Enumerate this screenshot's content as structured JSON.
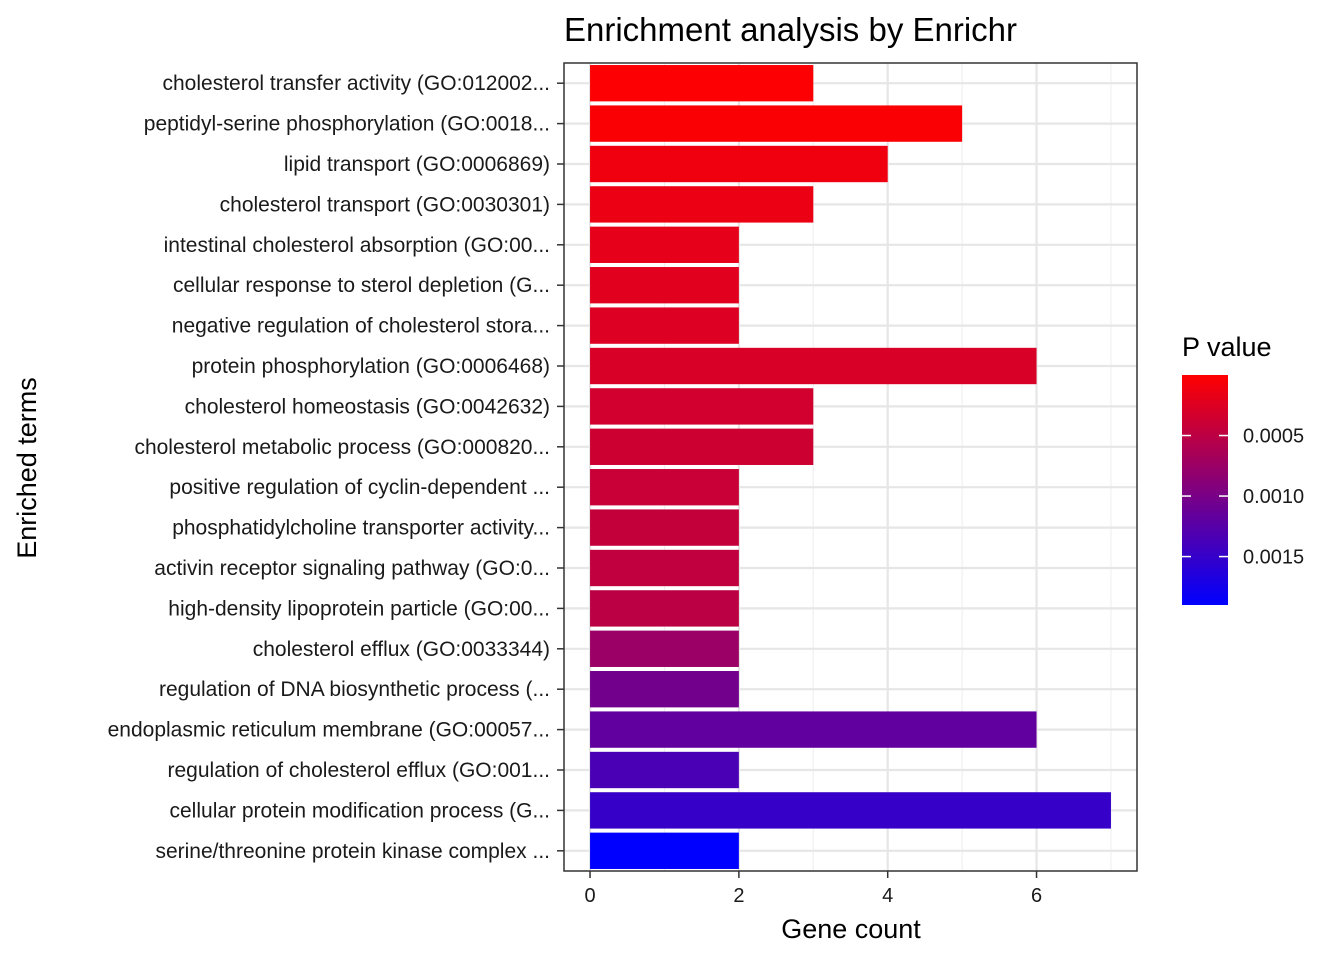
{
  "chart_data": {
    "type": "bar",
    "orientation": "horizontal",
    "title": "Enrichment analysis by Enrichr",
    "xlabel": "Gene count",
    "ylabel": "Enriched terms",
    "xlim": [
      -0.35,
      7.35
    ],
    "xticks": [
      0,
      2,
      4,
      6
    ],
    "grid": true,
    "legend": {
      "title": "P value",
      "placement": "right",
      "type": "colorbar",
      "range": [
        0.0,
        0.0019
      ],
      "ticks": [
        {
          "value": 0.0005,
          "label": "0.0005"
        },
        {
          "value": 0.001,
          "label": "0.0010"
        },
        {
          "value": 0.0015,
          "label": "0.0015"
        }
      ],
      "color_low": "#ff0000",
      "color_high": "#0000ff"
    },
    "categories": [
      "cholesterol transfer activity (GO:012002...",
      "peptidyl-serine phosphorylation (GO:0018...",
      "lipid transport (GO:0006869)",
      "cholesterol transport (GO:0030301)",
      "intestinal cholesterol absorption (GO:00...",
      "cellular response to sterol depletion (G...",
      "negative regulation of cholesterol stora...",
      "protein phosphorylation (GO:0006468)",
      "cholesterol homeostasis (GO:0042632)",
      "cholesterol metabolic process (GO:000820...",
      "positive regulation of cyclin-dependent ...",
      "phosphatidylcholine transporter activity...",
      "activin receptor signaling pathway (GO:0...",
      "high-density lipoprotein particle (GO:00...",
      "cholesterol efflux (GO:0033344)",
      "regulation of DNA biosynthetic process (...",
      "endoplasmic reticulum membrane (GO:00057...",
      "regulation of cholesterol efflux (GO:001...",
      "cellular protein modification process (G...",
      "serine/threonine protein kinase complex ..."
    ],
    "values": [
      3,
      5,
      4,
      3,
      2,
      2,
      2,
      6,
      3,
      3,
      2,
      2,
      2,
      2,
      2,
      2,
      6,
      2,
      7,
      2
    ],
    "pvalues": [
      2e-05,
      4e-05,
      0.00011,
      0.00015,
      0.00019,
      0.00022,
      0.00025,
      0.00029,
      0.00034,
      0.00037,
      0.00041,
      0.00044,
      0.00047,
      0.00051,
      0.00075,
      0.00105,
      0.00118,
      0.00135,
      0.0015,
      0.0019
    ]
  }
}
